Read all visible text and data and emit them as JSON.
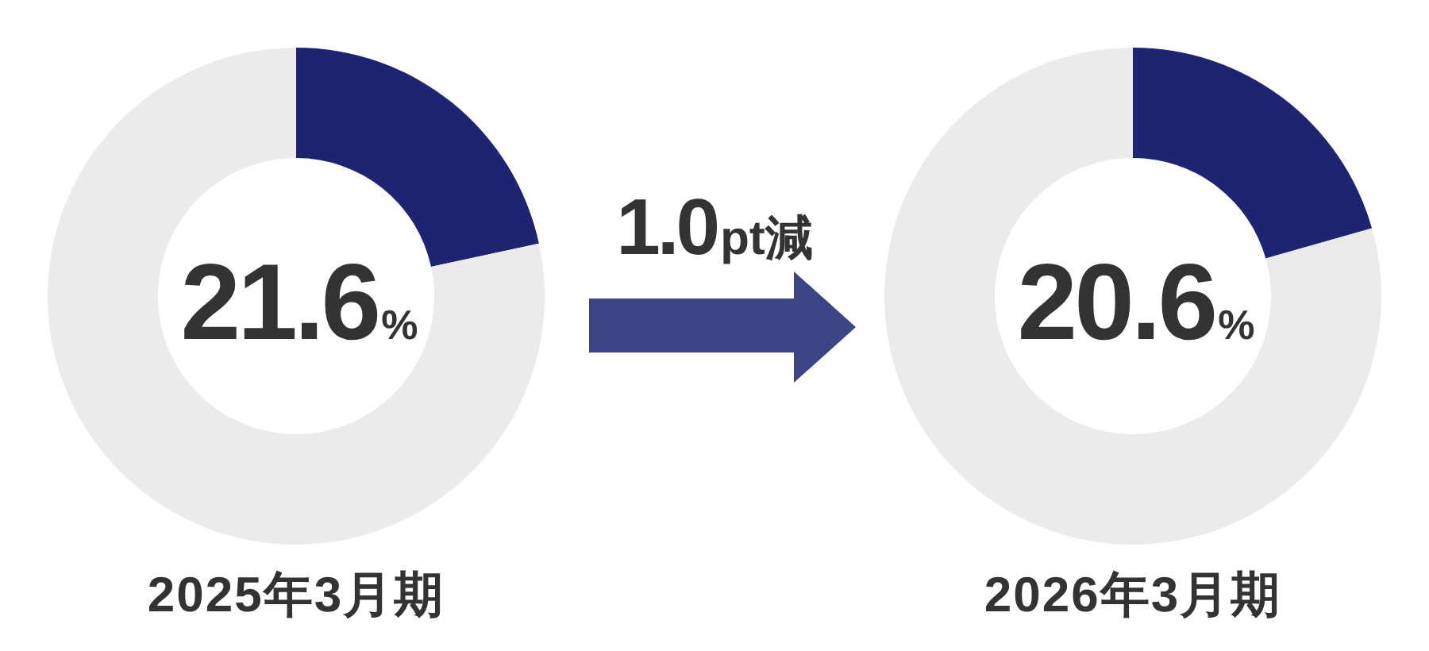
{
  "chart_data": [
    {
      "type": "donut",
      "title": "2025年3月期",
      "categories": [
        null,
        null
      ],
      "values": [
        21.6,
        78.4
      ],
      "colors": [
        "#1e2372",
        "#ebebeb"
      ],
      "annotations": [
        "21.6%"
      ]
    },
    {
      "type": "other",
      "annotations": [
        "1.0pt減"
      ]
    },
    {
      "type": "donut",
      "title": "2026年3月期",
      "categories": [
        null,
        null
      ],
      "values": [
        20.6,
        79.4
      ],
      "colors": [
        "#1e2372",
        "#ebebeb"
      ],
      "annotations": [
        "20.6%"
      ]
    }
  ]
}
